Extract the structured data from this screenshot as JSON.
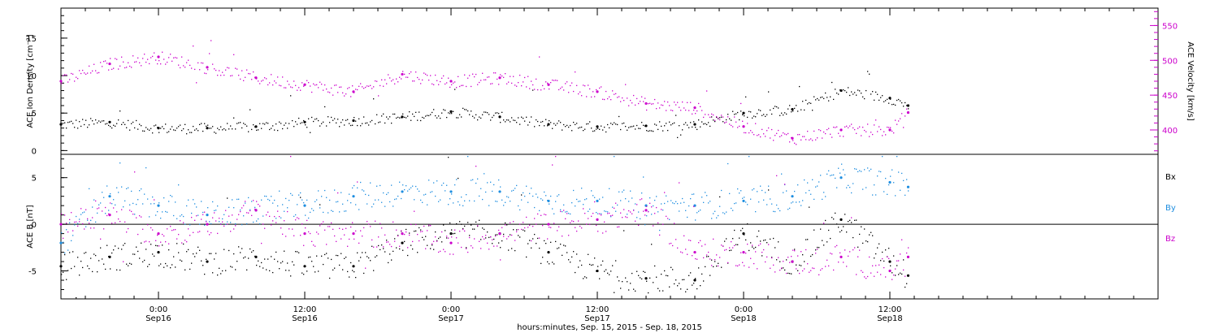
{
  "figure": {
    "xlabel": "hours:minutes, Sep. 15, 2015 - Sep. 18, 2015",
    "x_ticks": [
      {
        "time": "2015-09-16T00:00",
        "line1": "0:00",
        "line2": "Sep16"
      },
      {
        "time": "2015-09-16T12:00",
        "line1": "12:00",
        "line2": "Sep16"
      },
      {
        "time": "2015-09-17T00:00",
        "line1": "0:00",
        "line2": "Sep17"
      },
      {
        "time": "2015-09-17T12:00",
        "line1": "12:00",
        "line2": "Sep17"
      },
      {
        "time": "2015-09-18T00:00",
        "line1": "0:00",
        "line2": "Sep18"
      },
      {
        "time": "2015-09-18T12:00",
        "line1": "12:00",
        "line2": "Sep18"
      }
    ],
    "colors": {
      "density": "#000000",
      "velocity": "#cc00cc",
      "bx": "#000000",
      "by": "#1e8ee0",
      "bz": "#cc00cc"
    }
  },
  "chart_data": [
    {
      "type": "scatter",
      "xlim": [
        "2015-09-15T16:00",
        "2015-09-19T10:00"
      ],
      "ylabel": "ACE Ion Density [cm⁻³]",
      "ylim": [
        -0.5,
        19
      ],
      "y_ticks": [
        0,
        5,
        10,
        15
      ],
      "ylabel_right": "ACE Velocity [km/s]",
      "ylim_right": [
        365,
        575
      ],
      "y_ticks_right": [
        400,
        450,
        500,
        550
      ],
      "series": [
        {
          "name": "Ion Density",
          "axis": "left",
          "x": [
            "2015-09-15T16:00",
            "2015-09-15T20:00",
            "2015-09-16T00:00",
            "2015-09-16T04:00",
            "2015-09-16T08:00",
            "2015-09-16T12:00",
            "2015-09-16T16:00",
            "2015-09-16T20:00",
            "2015-09-17T00:00",
            "2015-09-17T04:00",
            "2015-09-17T08:00",
            "2015-09-17T12:00",
            "2015-09-17T16:00",
            "2015-09-17T20:00",
            "2015-09-18T00:00",
            "2015-09-18T04:00",
            "2015-09-18T08:00",
            "2015-09-18T12:00",
            "2015-09-18T13:30"
          ],
          "values": [
            3.5,
            3.8,
            3.0,
            3.0,
            3.2,
            3.8,
            4.0,
            4.5,
            5.2,
            4.5,
            3.5,
            3.2,
            3.3,
            3.5,
            5.0,
            5.5,
            8.0,
            7.0,
            6.0
          ]
        },
        {
          "name": "Velocity",
          "axis": "right",
          "x": [
            "2015-09-15T16:00",
            "2015-09-15T20:00",
            "2015-09-16T00:00",
            "2015-09-16T04:00",
            "2015-09-16T08:00",
            "2015-09-16T12:00",
            "2015-09-16T16:00",
            "2015-09-16T20:00",
            "2015-09-17T00:00",
            "2015-09-17T04:00",
            "2015-09-17T08:00",
            "2015-09-17T12:00",
            "2015-09-17T16:00",
            "2015-09-17T20:00",
            "2015-09-18T00:00",
            "2015-09-18T04:00",
            "2015-09-18T08:00",
            "2015-09-18T12:00",
            "2015-09-18T13:30"
          ],
          "values": [
            470,
            495,
            505,
            490,
            475,
            465,
            455,
            480,
            470,
            475,
            465,
            455,
            438,
            432,
            405,
            388,
            400,
            400,
            425
          ]
        }
      ]
    },
    {
      "type": "scatter",
      "xlim": [
        "2015-09-15T16:00",
        "2015-09-19T10:00"
      ],
      "ylabel": "ACE B [nT]",
      "ylim": [
        -8,
        7.5
      ],
      "y_ticks": [
        -5,
        0,
        5
      ],
      "zero_line": true,
      "series": [
        {
          "name": "Bx",
          "x": [
            "2015-09-15T16:00",
            "2015-09-15T20:00",
            "2015-09-16T00:00",
            "2015-09-16T04:00",
            "2015-09-16T08:00",
            "2015-09-16T12:00",
            "2015-09-16T16:00",
            "2015-09-16T20:00",
            "2015-09-17T00:00",
            "2015-09-17T04:00",
            "2015-09-17T08:00",
            "2015-09-17T12:00",
            "2015-09-17T16:00",
            "2015-09-17T20:00",
            "2015-09-18T00:00",
            "2015-09-18T04:00",
            "2015-09-18T08:00",
            "2015-09-18T12:00",
            "2015-09-18T13:30"
          ],
          "values": [
            -4.5,
            -3.5,
            -3.0,
            -4.0,
            -3.5,
            -4.5,
            -4.5,
            -2.0,
            -1.0,
            -1.0,
            -3.0,
            -5.0,
            -5.8,
            -6.0,
            -1.0,
            -4.0,
            0.5,
            -4.0,
            -5.5
          ]
        },
        {
          "name": "By",
          "x": [
            "2015-09-15T16:00",
            "2015-09-15T20:00",
            "2015-09-16T00:00",
            "2015-09-16T04:00",
            "2015-09-16T08:00",
            "2015-09-16T12:00",
            "2015-09-16T16:00",
            "2015-09-16T20:00",
            "2015-09-17T00:00",
            "2015-09-17T04:00",
            "2015-09-17T08:00",
            "2015-09-17T12:00",
            "2015-09-17T16:00",
            "2015-09-17T20:00",
            "2015-09-18T00:00",
            "2015-09-18T04:00",
            "2015-09-18T08:00",
            "2015-09-18T12:00",
            "2015-09-18T13:30"
          ],
          "values": [
            -2.0,
            3.0,
            2.0,
            1.0,
            1.5,
            2.0,
            3.0,
            3.5,
            3.5,
            3.5,
            2.5,
            2.5,
            2.0,
            2.0,
            2.5,
            3.0,
            5.0,
            4.5,
            4.0
          ]
        },
        {
          "name": "Bz",
          "x": [
            "2015-09-15T16:00",
            "2015-09-15T20:00",
            "2015-09-16T00:00",
            "2015-09-16T04:00",
            "2015-09-16T08:00",
            "2015-09-16T12:00",
            "2015-09-16T16:00",
            "2015-09-16T20:00",
            "2015-09-17T00:00",
            "2015-09-17T04:00",
            "2015-09-17T08:00",
            "2015-09-17T12:00",
            "2015-09-17T16:00",
            "2015-09-17T20:00",
            "2015-09-18T00:00",
            "2015-09-18T04:00",
            "2015-09-18T08:00",
            "2015-09-18T12:00",
            "2015-09-18T13:30"
          ],
          "values": [
            0.0,
            1.0,
            -1.0,
            0.0,
            1.5,
            -1.0,
            -1.0,
            -1.0,
            -2.0,
            -1.0,
            0.0,
            0.5,
            1.5,
            -3.0,
            -3.0,
            -4.0,
            -3.5,
            -5.0,
            -3.5
          ]
        }
      ],
      "legend": {
        "placement": "right",
        "entries": [
          "Bx",
          "By",
          "Bz"
        ]
      }
    }
  ]
}
